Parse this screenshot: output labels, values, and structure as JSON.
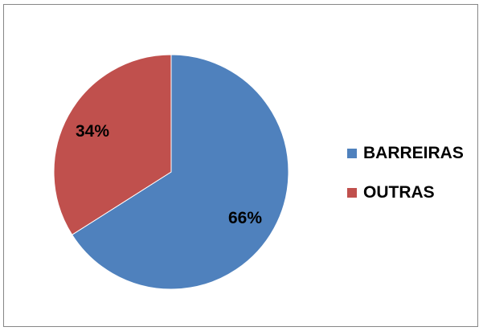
{
  "chart_data": {
    "type": "pie",
    "title": "",
    "categories": [
      "BARREIRAS",
      "OUTRAS"
    ],
    "values": [
      66,
      34
    ],
    "labels": [
      "66%",
      "34%"
    ],
    "colors": [
      "#4F81BD",
      "#C0504D"
    ],
    "legend_position": "right"
  }
}
